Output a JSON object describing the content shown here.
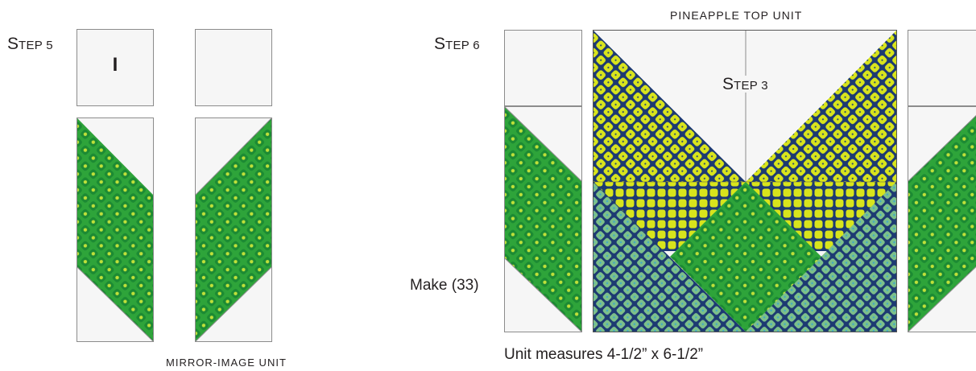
{
  "colors": {
    "white_fabric": "#f6f6f6",
    "lime_fabric": "#d8e41c",
    "green_fabric": "#2ea43a",
    "teal_fabric": "#7cc08a",
    "navy_grid": "#1d3a72"
  },
  "left_panel": {
    "step_label_initial": "S",
    "step_label_rest": "TEP 5",
    "piece_label": "I",
    "caption": "MIRROR-IMAGE UNIT"
  },
  "right_panel": {
    "title": "PINEAPPLE TOP UNIT",
    "step_label_initial": "S",
    "step_label_rest": "TEP 6",
    "inner_step_initial": "S",
    "inner_step_rest": "TEP 3",
    "make_count": "Make (33)",
    "measure_note": "Unit measures 4-1/2” x 6-1/2”"
  }
}
